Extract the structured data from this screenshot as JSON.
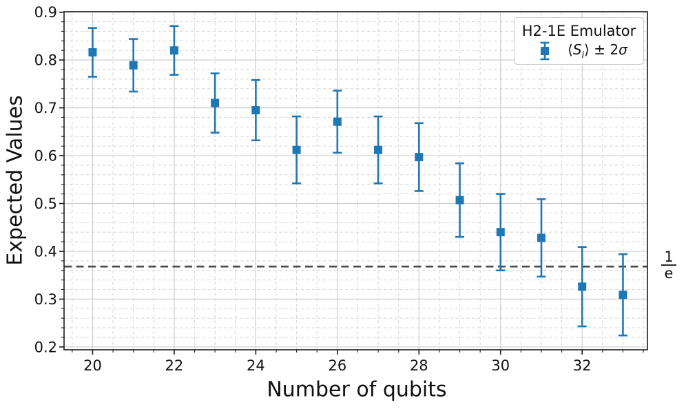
{
  "figure": {
    "background": "#ffffff"
  },
  "chart_data": {
    "type": "scatter",
    "subtype": "errorbar",
    "title": "",
    "xlabel": "Number of qubits",
    "ylabel": "Expected Values",
    "xlim": [
      19.3,
      33.6
    ],
    "ylim": [
      0.194,
      0.901
    ],
    "xticks": [
      20,
      22,
      24,
      26,
      28,
      30,
      32
    ],
    "xtick_labels": [
      "20",
      "22",
      "24",
      "26",
      "28",
      "30",
      "32"
    ],
    "yticks": [
      0.2,
      0.3,
      0.4,
      0.5,
      0.6,
      0.7,
      0.8,
      0.9
    ],
    "ytick_labels": [
      "0.2",
      "0.3",
      "0.4",
      "0.5",
      "0.6",
      "0.7",
      "0.8",
      "0.9"
    ],
    "x_minor_step": 0.5,
    "y_minor_step": 0.02,
    "grid": {
      "major": true,
      "minor": true,
      "minor_style": "dashed"
    },
    "series": [
      {
        "name": "⟨Sᵢ⟩ ± 2σ",
        "marker": "square",
        "color": "#1f77b4",
        "x": [
          20,
          21,
          22,
          23,
          24,
          25,
          26,
          27,
          28,
          29,
          30,
          31,
          32,
          33
        ],
        "y": [
          0.816,
          0.789,
          0.82,
          0.71,
          0.695,
          0.612,
          0.671,
          0.612,
          0.597,
          0.507,
          0.44,
          0.428,
          0.326,
          0.309
        ],
        "yerr": [
          0.051,
          0.055,
          0.051,
          0.062,
          0.063,
          0.07,
          0.065,
          0.07,
          0.071,
          0.077,
          0.08,
          0.081,
          0.083,
          0.085
        ]
      }
    ],
    "hline": {
      "value": 0.368,
      "style": "dashed",
      "color": "#4c4c4c",
      "label_numerator": "1",
      "label_denominator": "e"
    },
    "legend": {
      "position": "upper-right",
      "title": "H2-1E Emulator",
      "entry": {
        "open": "⟨",
        "symbol": "S",
        "sub": "i",
        "close": "⟩",
        "middle": " ± 2",
        "sigma": "σ"
      }
    }
  },
  "colors": {
    "marker": "#1f77b4",
    "grid_major": "#cdcdcd",
    "grid_minor": "#d9d9d9",
    "spine": "#1a1a1a",
    "tick": "#1a1a1a",
    "text": "#111111",
    "hline": "#4c4c4c",
    "legend_border": "#c9c9c9"
  }
}
